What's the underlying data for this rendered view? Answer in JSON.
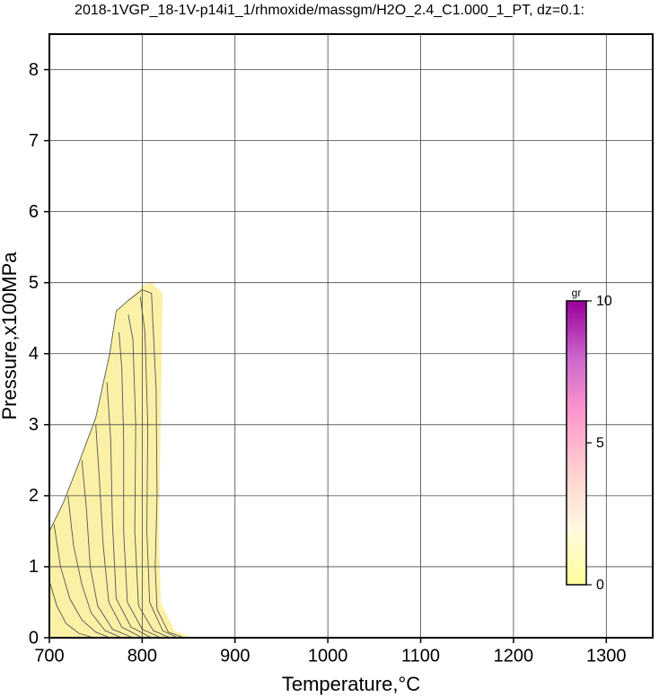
{
  "chart_data": {
    "type": "contour",
    "title": "2018-1VGP_18-1V-p14i1_1/rhmoxide/massgm/H2O_2.4_C1.000_1_PT, dz=0.1:",
    "x_label": "Temperature,°C",
    "y_label": "Pressure,x100MPa",
    "xlim": [
      700,
      1350
    ],
    "ylim": [
      0,
      8.5
    ],
    "xticks": [
      700,
      800,
      900,
      1000,
      1100,
      1200,
      1300
    ],
    "yticks": [
      0,
      1,
      2,
      3,
      4,
      5,
      6,
      7,
      8
    ],
    "grid": true,
    "region": {
      "color": "#fbf1a6",
      "x": [
        700,
        700,
        715,
        730,
        750,
        765,
        772,
        785,
        800,
        810,
        822,
        820,
        818,
        820,
        835,
        850,
        855
      ],
      "y": [
        0,
        1.5,
        1.9,
        2.4,
        3.1,
        4.0,
        4.6,
        4.75,
        4.95,
        5.0,
        4.85,
        3.0,
        1.5,
        0.5,
        0.1,
        0.02,
        0
      ]
    },
    "contour_color": "#555555",
    "contours": [
      {
        "x": [
          700,
          715,
          730,
          750,
          765,
          772,
          785,
          800,
          810,
          815,
          816,
          814,
          816,
          828,
          845
        ],
        "y": [
          1.5,
          1.9,
          2.4,
          3.1,
          4.0,
          4.6,
          4.75,
          4.9,
          4.85,
          3.5,
          2.0,
          1.0,
          0.4,
          0.08,
          0
        ]
      },
      {
        "x": [
          798,
          803,
          806,
          805,
          808,
          822,
          838
        ],
        "y": [
          4.8,
          4.3,
          3.0,
          1.5,
          0.5,
          0.1,
          0
        ]
      },
      {
        "x": [
          785,
          790,
          793,
          792,
          796,
          812,
          830
        ],
        "y": [
          4.55,
          4.2,
          3.0,
          1.5,
          0.45,
          0.1,
          0
        ]
      },
      {
        "x": [
          775,
          778,
          780,
          780,
          784,
          800,
          820
        ],
        "y": [
          4.3,
          3.8,
          2.8,
          1.5,
          0.5,
          0.12,
          0
        ]
      },
      {
        "x": [
          762,
          766,
          768,
          772,
          788,
          810
        ],
        "y": [
          3.6,
          2.8,
          1.6,
          0.55,
          0.15,
          0
        ]
      },
      {
        "x": [
          750,
          754,
          758,
          764,
          778,
          800
        ],
        "y": [
          3.0,
          2.2,
          1.3,
          0.5,
          0.15,
          0
        ]
      },
      {
        "x": [
          735,
          740,
          744,
          752,
          768,
          790
        ],
        "y": [
          2.5,
          1.8,
          1.0,
          0.45,
          0.12,
          0
        ]
      },
      {
        "x": [
          720,
          726,
          735,
          745,
          760,
          778
        ],
        "y": [
          2.0,
          1.3,
          0.75,
          0.35,
          0.1,
          0
        ]
      },
      {
        "x": [
          705,
          712,
          722,
          735,
          750,
          765
        ],
        "y": [
          1.6,
          1.0,
          0.55,
          0.25,
          0.08,
          0
        ]
      },
      {
        "x": [
          700,
          708,
          718,
          732,
          748
        ],
        "y": [
          0.8,
          0.45,
          0.2,
          0.06,
          0
        ]
      }
    ],
    "colorbar": {
      "label": "gr",
      "lim": [
        0,
        10
      ],
      "ticks": [
        0,
        5,
        10
      ],
      "colors": [
        "#ffff99",
        "#fff8e0",
        "#ffd0d0",
        "#ff99cc",
        "#cc66cc",
        "#990099"
      ]
    }
  }
}
